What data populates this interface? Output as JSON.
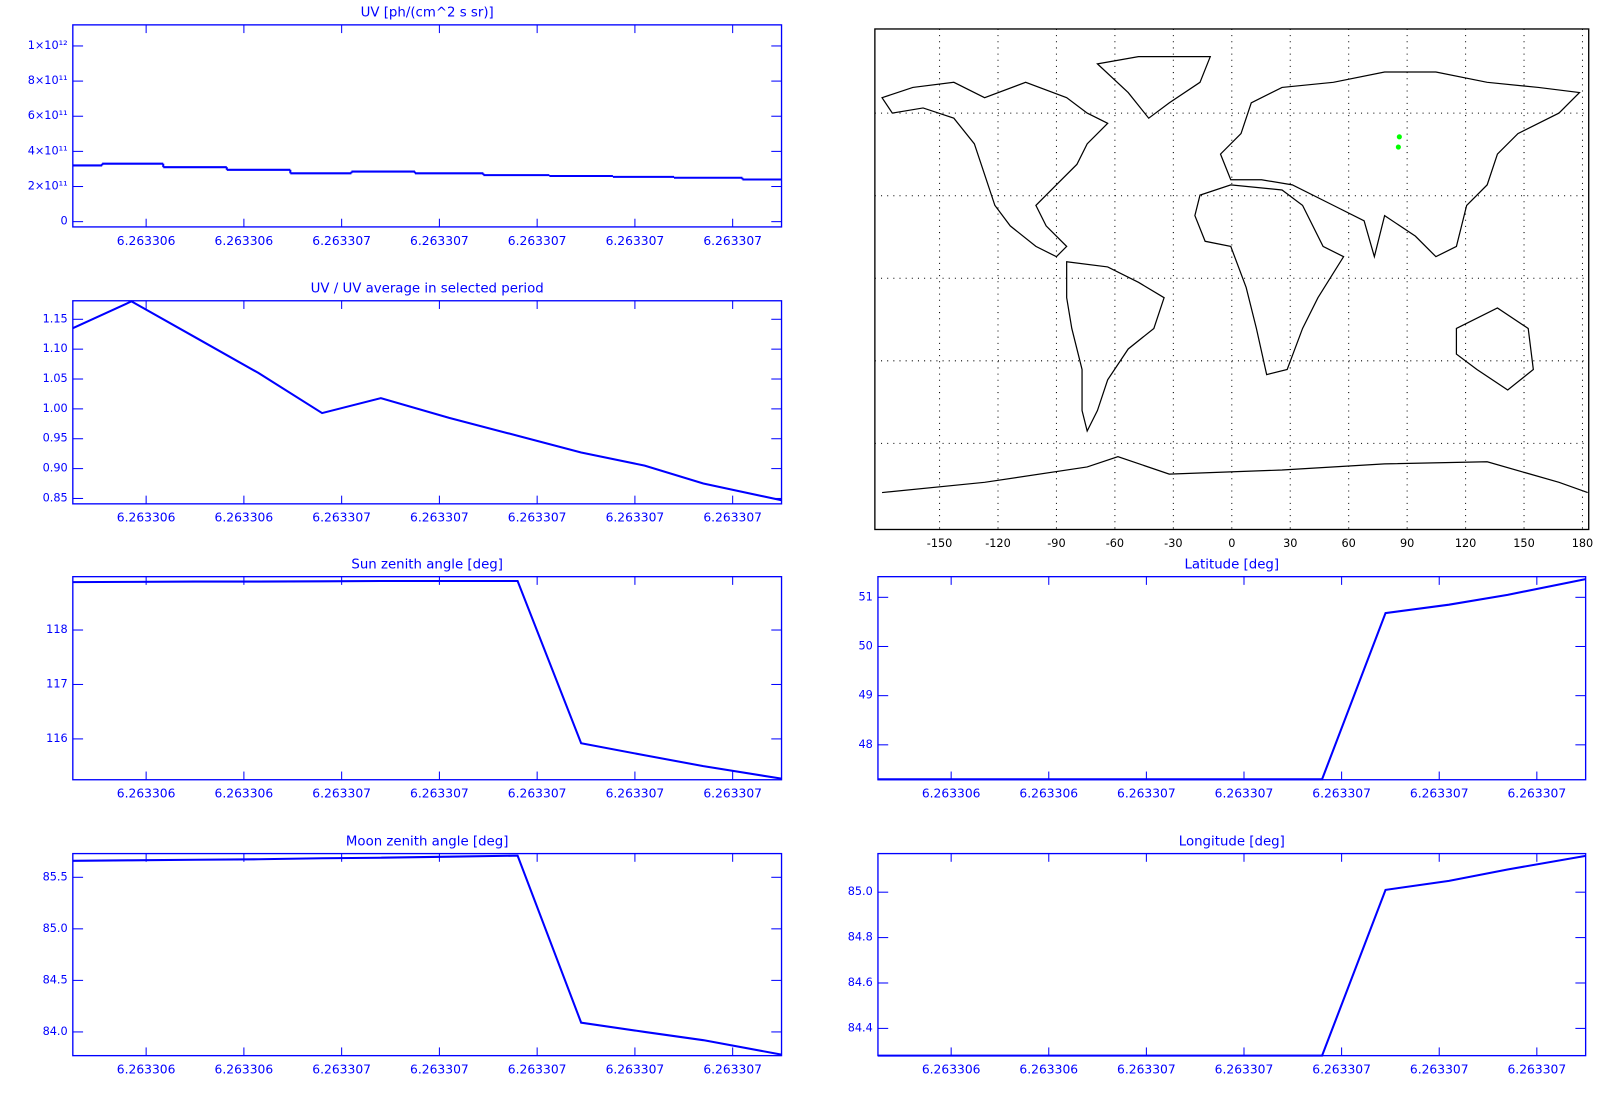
{
  "chart_data": [
    {
      "type": "step",
      "title": "UV [ph/(cm^2 s sr)]",
      "color": "#0000ff",
      "x": [
        6.26330605,
        6.26330617,
        6.2633063,
        6.26330643,
        6.26330656,
        6.26330668,
        6.26330682,
        6.26330696,
        6.26330709,
        6.26330722,
        6.26330734,
        6.2633075
      ],
      "values": [
        320000000000,
        330000000000,
        310000000000,
        295000000000,
        275000000000,
        285000000000,
        275000000000,
        265000000000,
        260000000000,
        255000000000,
        250000000000,
        240000000000
      ],
      "xlim": [
        6.26330605,
        6.2633075
      ],
      "xticks": [
        {
          "value": 6.2633062,
          "label": "6.263306"
        },
        {
          "value": 6.2633064,
          "label": "6.263306"
        },
        {
          "value": 6.2633066,
          "label": "6.263307"
        },
        {
          "value": 6.2633068,
          "label": "6.263307"
        },
        {
          "value": 6.263307,
          "label": "6.263307"
        },
        {
          "value": 6.2633072,
          "label": "6.263307"
        },
        {
          "value": 6.2633074,
          "label": "6.263307"
        }
      ],
      "ylim": [
        -30000000000,
        1120000000000
      ],
      "yticks": [
        0,
        {
          "value": 200000000000,
          "label": "2×10¹¹"
        },
        {
          "value": 400000000000,
          "label": "4×10¹¹"
        },
        {
          "value": 600000000000,
          "label": "6×10¹¹"
        },
        {
          "value": 800000000000,
          "label": "8×10¹¹"
        },
        {
          "value": 1000000000000,
          "label": "1×10¹²"
        }
      ]
    },
    {
      "type": "line",
      "title": "UV / UV average in selected period",
      "color": "#0000ff",
      "x": [
        6.26330605,
        6.26330617,
        6.2633063,
        6.26330643,
        6.26330656,
        6.26330668,
        6.26330682,
        6.26330696,
        6.26330709,
        6.26330722,
        6.26330734,
        6.2633075
      ],
      "values": [
        1.135,
        1.18,
        1.12,
        1.06,
        0.993,
        1.018,
        0.985,
        0.955,
        0.927,
        0.905,
        0.875,
        0.847
      ],
      "xlim": [
        6.26330605,
        6.2633075
      ],
      "xticks": [
        {
          "value": 6.2633062,
          "label": "6.263306"
        },
        {
          "value": 6.2633064,
          "label": "6.263306"
        },
        {
          "value": 6.2633066,
          "label": "6.263307"
        },
        {
          "value": 6.2633068,
          "label": "6.263307"
        },
        {
          "value": 6.263307,
          "label": "6.263307"
        },
        {
          "value": 6.2633072,
          "label": "6.263307"
        },
        {
          "value": 6.2633074,
          "label": "6.263307"
        }
      ],
      "ylim": [
        0.841,
        1.181
      ],
      "yticks": [
        0.85,
        {
          "value": 0.9,
          "label": "0.90"
        },
        0.95,
        {
          "value": 1,
          "label": "1.00"
        },
        1.05,
        {
          "value": 1.1,
          "label": "1.10"
        },
        1.15
      ]
    },
    {
      "type": "line",
      "title": "Sun zenith angle [deg]",
      "color": "#0000ff",
      "x": [
        6.26330605,
        6.26330617,
        6.2633063,
        6.26330643,
        6.26330656,
        6.26330668,
        6.26330682,
        6.26330696,
        6.26330709,
        6.26330722,
        6.26330734,
        6.2633075
      ],
      "values": [
        118.88,
        118.885,
        118.89,
        118.89,
        118.895,
        118.9,
        118.9,
        118.9,
        115.92,
        115.7,
        115.5,
        115.27
      ],
      "xlim": [
        6.26330605,
        6.2633075
      ],
      "xticks": [
        {
          "value": 6.2633062,
          "label": "6.263306"
        },
        {
          "value": 6.2633064,
          "label": "6.263306"
        },
        {
          "value": 6.2633066,
          "label": "6.263307"
        },
        {
          "value": 6.2633068,
          "label": "6.263307"
        },
        {
          "value": 6.263307,
          "label": "6.263307"
        },
        {
          "value": 6.2633072,
          "label": "6.263307"
        },
        {
          "value": 6.2633074,
          "label": "6.263307"
        }
      ],
      "ylim": [
        115.25,
        118.98
      ],
      "yticks": [
        116,
        117,
        118
      ]
    },
    {
      "type": "line",
      "title": "Moon zenith angle [deg]",
      "color": "#0000ff",
      "x": [
        6.26330605,
        6.26330617,
        6.2633063,
        6.26330643,
        6.26330656,
        6.26330668,
        6.26330682,
        6.26330696,
        6.26330709,
        6.26330722,
        6.26330734,
        6.2633075
      ],
      "values": [
        85.66,
        85.665,
        85.67,
        85.675,
        85.685,
        85.69,
        85.7,
        85.71,
        84.09,
        84.0,
        83.92,
        83.78
      ],
      "xlim": [
        6.26330605,
        6.2633075
      ],
      "xticks": [
        {
          "value": 6.2633062,
          "label": "6.263306"
        },
        {
          "value": 6.2633064,
          "label": "6.263306"
        },
        {
          "value": 6.2633066,
          "label": "6.263307"
        },
        {
          "value": 6.2633068,
          "label": "6.263307"
        },
        {
          "value": 6.263307,
          "label": "6.263307"
        },
        {
          "value": 6.2633072,
          "label": "6.263307"
        },
        {
          "value": 6.2633074,
          "label": "6.263307"
        }
      ],
      "ylim": [
        83.77,
        85.73
      ],
      "yticks": [
        {
          "value": 84,
          "label": "84.0"
        },
        84.5,
        {
          "value": 85,
          "label": "85.0"
        },
        85.5
      ]
    },
    {
      "type": "map",
      "grid": true,
      "xlim": [
        -183.2,
        183.2
      ],
      "xticks": [
        -150,
        -120,
        -90,
        -60,
        -30,
        0,
        30,
        60,
        90,
        120,
        150,
        180
      ],
      "ylim": [
        -91.3,
        90.6
      ],
      "ygrid": [
        -60,
        -30,
        0,
        30,
        60
      ],
      "series": [
        {
          "color": "#00ff00",
          "x": [
            86,
            85.5
          ],
          "values": [
            51.4,
            47.7
          ]
        }
      ]
    },
    {
      "type": "line",
      "title": "Latitude [deg]",
      "color": "#0000ff",
      "x": [
        6.26330605,
        6.26330617,
        6.2633063,
        6.26330643,
        6.26330656,
        6.26330668,
        6.26330682,
        6.26330696,
        6.26330709,
        6.26330722,
        6.26330734,
        6.2633075
      ],
      "values": [
        47.3,
        47.3,
        47.3,
        47.3,
        47.3,
        47.3,
        47.3,
        47.3,
        50.68,
        50.85,
        51.05,
        51.37
      ],
      "xlim": [
        6.26330605,
        6.2633075
      ],
      "xticks": [
        {
          "value": 6.2633062,
          "label": "6.263306"
        },
        {
          "value": 6.2633064,
          "label": "6.263306"
        },
        {
          "value": 6.2633066,
          "label": "6.263307"
        },
        {
          "value": 6.2633068,
          "label": "6.263307"
        },
        {
          "value": 6.263307,
          "label": "6.263307"
        },
        {
          "value": 6.2633072,
          "label": "6.263307"
        },
        {
          "value": 6.2633074,
          "label": "6.263307"
        }
      ],
      "ylim": [
        47.29,
        51.42
      ],
      "yticks": [
        48,
        49,
        50,
        51
      ]
    },
    {
      "type": "line",
      "title": "Longitude [deg]",
      "color": "#0000ff",
      "x": [
        6.26330605,
        6.26330617,
        6.2633063,
        6.26330643,
        6.26330656,
        6.26330668,
        6.26330682,
        6.26330696,
        6.26330709,
        6.26330722,
        6.26330734,
        6.2633075
      ],
      "values": [
        84.28,
        84.28,
        84.28,
        84.28,
        84.28,
        84.28,
        84.28,
        84.28,
        85.01,
        85.05,
        85.1,
        85.16
      ],
      "xlim": [
        6.26330605,
        6.2633075
      ],
      "xticks": [
        {
          "value": 6.2633062,
          "label": "6.263306"
        },
        {
          "value": 6.2633064,
          "label": "6.263306"
        },
        {
          "value": 6.2633066,
          "label": "6.263307"
        },
        {
          "value": 6.2633068,
          "label": "6.263307"
        },
        {
          "value": 6.263307,
          "label": "6.263307"
        },
        {
          "value": 6.2633072,
          "label": "6.263307"
        },
        {
          "value": 6.2633074,
          "label": "6.263307"
        }
      ],
      "ylim": [
        84.28,
        85.17
      ],
      "yticks": [
        84.4,
        84.6,
        84.8,
        {
          "value": 85,
          "label": "85.0"
        }
      ]
    }
  ]
}
